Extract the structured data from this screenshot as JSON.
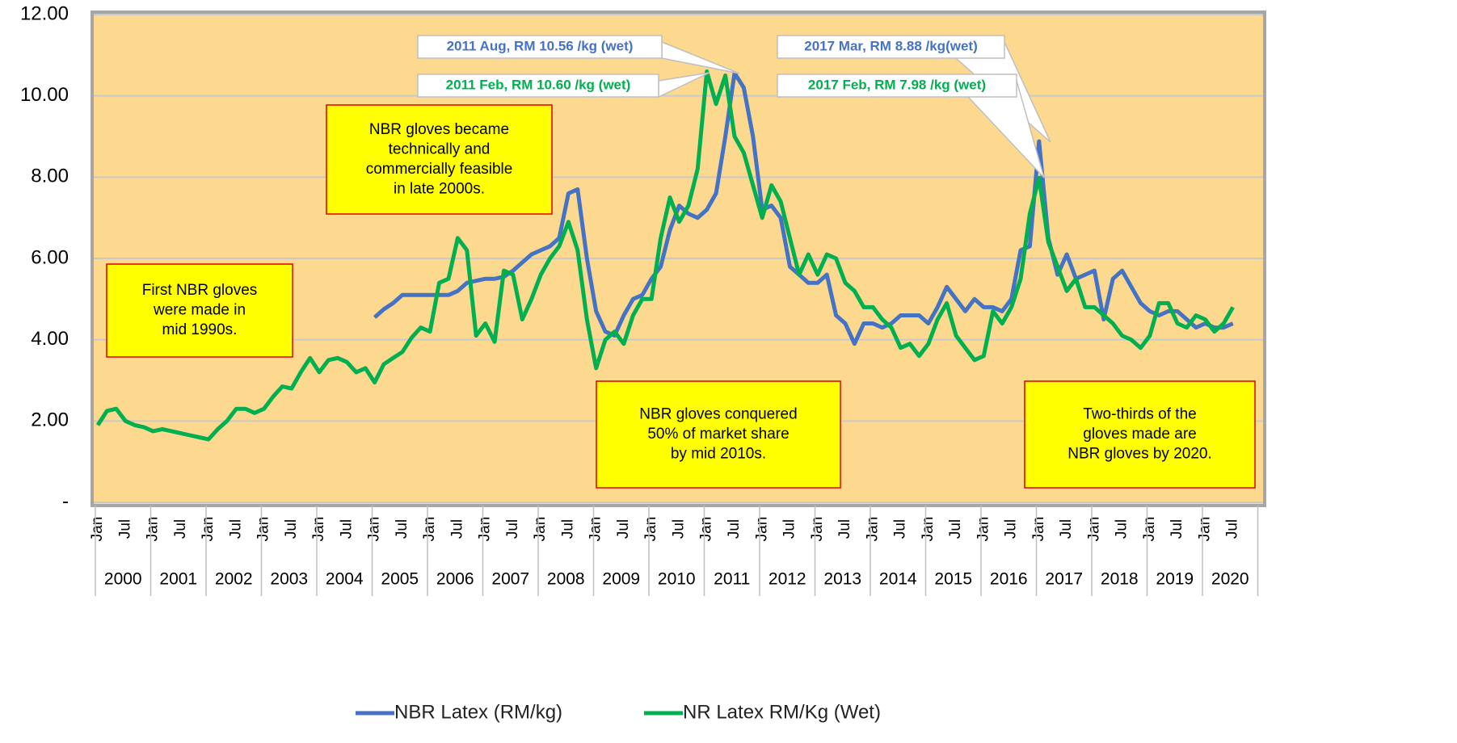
{
  "chart_data": {
    "type": "line",
    "categories": [
      "Jan",
      null,
      null,
      "Jul",
      null,
      null,
      "Jan",
      null,
      null,
      "Jul",
      null,
      null,
      "Jan",
      null,
      null,
      "Jul",
      null,
      null,
      "Jan",
      null,
      null,
      "Jul",
      null,
      null,
      "Jan",
      null,
      null,
      "Jul",
      null,
      null,
      "Jan",
      null,
      null,
      "Jul",
      null,
      null,
      "Jan",
      null,
      null,
      "Jul",
      null,
      null,
      "Jan",
      null,
      null,
      "Jul",
      null,
      null,
      "Jan",
      null,
      null,
      "Jul",
      null,
      null,
      "Jan",
      null,
      null,
      "Jul",
      null,
      null,
      "Jan",
      null,
      null,
      "Jul",
      null,
      null,
      "Jan",
      null,
      null,
      "Jul",
      null,
      null,
      "Jan",
      null,
      null,
      "Jul",
      null,
      null,
      "Jan",
      null,
      null,
      "Jul",
      null,
      null,
      "Jan",
      null,
      null,
      "Jul",
      null,
      null,
      "Jan",
      null,
      null,
      "Jul",
      null,
      null,
      "Jan",
      null,
      null,
      "Jul",
      null,
      null,
      "Jan",
      null,
      null,
      "Jul",
      null,
      null,
      "Jan",
      null,
      null,
      "Jul",
      null,
      null,
      "Jan",
      null,
      null,
      "Jul",
      null,
      null,
      "Jan",
      null,
      null,
      "Jul"
    ],
    "years": [
      "2000",
      "2001",
      "2002",
      "2003",
      "2004",
      "2005",
      "2006",
      "2007",
      "2008",
      "2009",
      "2010",
      "2011",
      "2012",
      "2013",
      "2014",
      "2015",
      "2016",
      "2017",
      "2018",
      "2019",
      "2020"
    ],
    "series": [
      {
        "name": "NBR Latex (RM/kg)",
        "color": "#4472c4",
        "values": [
          null,
          null,
          null,
          null,
          null,
          null,
          null,
          null,
          null,
          null,
          null,
          null,
          null,
          null,
          null,
          null,
          null,
          null,
          null,
          null,
          null,
          null,
          null,
          null,
          null,
          null,
          null,
          null,
          null,
          null,
          4.55,
          4.75,
          4.9,
          5.1,
          5.1,
          5.1,
          5.1,
          5.1,
          5.1,
          5.2,
          5.4,
          5.45,
          5.5,
          5.5,
          5.55,
          5.7,
          5.9,
          6.1,
          6.2,
          6.3,
          6.5,
          7.6,
          7.7,
          6.0,
          4.7,
          4.2,
          4.1,
          4.6,
          5.0,
          5.1,
          5.5,
          5.8,
          6.7,
          7.3,
          7.1,
          7.0,
          7.2,
          7.6,
          9.0,
          10.56,
          10.2,
          9.0,
          7.2,
          7.3,
          7.0,
          5.8,
          5.6,
          5.4,
          5.4,
          5.6,
          4.6,
          4.4,
          3.9,
          4.4,
          4.4,
          4.3,
          4.4,
          4.6,
          4.6,
          4.6,
          4.4,
          4.8,
          5.3,
          5.0,
          4.7,
          5.0,
          4.8,
          4.8,
          4.7,
          5.0,
          6.2,
          6.3,
          8.88,
          6.5,
          5.6,
          6.1,
          5.5,
          5.6,
          5.7,
          4.5,
          5.5,
          5.7,
          5.3,
          4.9,
          4.7,
          4.6,
          4.7,
          4.7,
          4.5,
          4.3,
          4.4,
          4.3,
          4.3,
          4.4
        ]
      },
      {
        "name": "NR Latex RM/Kg (Wet)",
        "color": "#00b050",
        "values": [
          1.9,
          2.25,
          2.3,
          2.0,
          1.9,
          1.85,
          1.75,
          1.8,
          1.75,
          1.7,
          1.65,
          1.6,
          1.55,
          1.8,
          2.0,
          2.3,
          2.3,
          2.2,
          2.3,
          2.6,
          2.85,
          2.8,
          3.2,
          3.55,
          3.2,
          3.5,
          3.55,
          3.45,
          3.2,
          3.3,
          2.95,
          3.4,
          3.55,
          3.7,
          4.05,
          4.3,
          4.2,
          5.4,
          5.5,
          6.5,
          6.2,
          4.1,
          4.4,
          3.95,
          5.7,
          5.6,
          4.5,
          5.0,
          5.6,
          6.0,
          6.3,
          6.9,
          6.2,
          4.5,
          3.3,
          4.0,
          4.2,
          3.9,
          4.6,
          5.0,
          5.0,
          6.5,
          7.5,
          6.9,
          7.3,
          8.2,
          10.6,
          9.8,
          10.5,
          9.0,
          8.6,
          7.8,
          7.0,
          7.8,
          7.4,
          6.5,
          5.6,
          6.1,
          5.6,
          6.1,
          6.0,
          5.4,
          5.2,
          4.8,
          4.8,
          4.5,
          4.3,
          3.8,
          3.9,
          3.6,
          3.9,
          4.5,
          4.9,
          4.1,
          3.8,
          3.5,
          3.6,
          4.7,
          4.4,
          4.8,
          5.5,
          7.1,
          7.98,
          6.4,
          5.8,
          5.2,
          5.5,
          4.8,
          4.8,
          4.6,
          4.4,
          4.1,
          4.0,
          3.8,
          4.1,
          4.9,
          4.9,
          4.4,
          4.3,
          4.6,
          4.5,
          4.2,
          4.4,
          4.8
        ]
      }
    ],
    "ylim": [
      0,
      12
    ],
    "yticks": [
      {
        "value": 0,
        "label": "-"
      },
      {
        "value": 2,
        "label": "2.00"
      },
      {
        "value": 4,
        "label": "4.00"
      },
      {
        "value": 6,
        "label": "6.00"
      },
      {
        "value": 8,
        "label": "8.00"
      },
      {
        "value": 10,
        "label": "10.00"
      },
      {
        "value": 12,
        "label": "12.00"
      }
    ],
    "grid": true,
    "legend": "bottom",
    "callouts": [
      {
        "text": "2011 Aug, RM 10.56 /kg (wet)",
        "color": "#4472c4"
      },
      {
        "text": "2011 Feb, RM 10.60 /kg (wet)",
        "color": "#00b050"
      },
      {
        "text": "2017 Mar, RM 8.88 /kg(wet)",
        "color": "#4472c4"
      },
      {
        "text": "2017 Feb, RM 7.98 /kg (wet)",
        "color": "#00b050"
      }
    ],
    "notes": [
      {
        "text": [
          "First NBR gloves",
          "were made in",
          "mid 1990s."
        ]
      },
      {
        "text": [
          "NBR gloves became",
          "technically and",
          "commercially feasible",
          "in late 2000s."
        ]
      },
      {
        "text": [
          "NBR gloves conquered",
          "50% of market share",
          "by mid 2010s."
        ]
      },
      {
        "text": [
          "Two-thirds of the",
          "gloves made are",
          "NBR gloves by 2020."
        ]
      }
    ]
  }
}
